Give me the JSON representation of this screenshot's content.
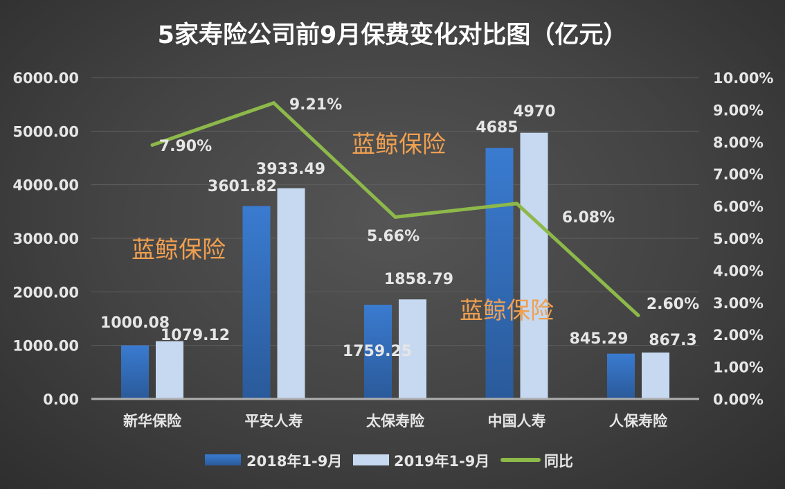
{
  "chart_data": {
    "type": "bar+line",
    "title": "5家寿险公司前9月保费变化对比图（亿元）",
    "categories": [
      "新华保险",
      "平安人寿",
      "太保寿险",
      "中国人寿",
      "人保寿险"
    ],
    "series": [
      {
        "name": "2018年1-9月",
        "type": "bar",
        "axis": "left",
        "color": "#3a75c4",
        "values": [
          1000.08,
          3601.82,
          1759.25,
          4685,
          845.29
        ],
        "labels": [
          "1000.08",
          "3601.82",
          "1759.25",
          "4685",
          "845.29"
        ]
      },
      {
        "name": "2019年1-9月",
        "type": "bar",
        "axis": "left",
        "color": "#c6d9f0",
        "values": [
          1079.12,
          3933.49,
          1858.79,
          4970,
          867.3
        ],
        "labels": [
          "1079.12",
          "3933.49",
          "1858.79",
          "4970",
          "867.3"
        ]
      },
      {
        "name": "同比",
        "type": "line",
        "axis": "right",
        "color": "#8db84a",
        "values": [
          7.9,
          9.21,
          5.66,
          6.08,
          2.6
        ],
        "labels": [
          "7.90%",
          "9.21%",
          "5.66%",
          "6.08%",
          "2.60%"
        ]
      }
    ],
    "left_axis": {
      "ylim": [
        0,
        6000
      ],
      "ticks": [
        "0.00",
        "1000.00",
        "2000.00",
        "3000.00",
        "4000.00",
        "5000.00",
        "6000.00"
      ]
    },
    "right_axis": {
      "ylim": [
        0,
        10
      ],
      "ticks": [
        "0.00%",
        "1.00%",
        "2.00%",
        "3.00%",
        "4.00%",
        "5.00%",
        "6.00%",
        "7.00%",
        "8.00%",
        "9.00%",
        "10.00%"
      ]
    },
    "grid": true,
    "legend": "bottom"
  },
  "watermark": {
    "text": "蓝鲸保险",
    "color": "#f0a050"
  }
}
